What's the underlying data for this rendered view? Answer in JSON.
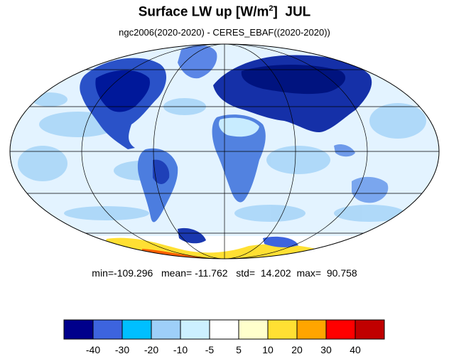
{
  "title": {
    "main": "Surface LW up [W/m",
    "sup": "2",
    "close": "]",
    "month": "JUL"
  },
  "subtitle": "ngc2006(2020-2020) - CERES_EBAF((2020-2020))",
  "stats": {
    "min_label": "min=",
    "min": "-109.296",
    "mean_label": "mean=",
    "mean": "-11.762",
    "std_label": "std=",
    "std": "14.202",
    "max_label": "max=",
    "max": "90.758"
  },
  "colorbar": {
    "colors": [
      "#00008b",
      "#3d64de",
      "#00bfff",
      "#9ecff9",
      "#ccf0ff",
      "#ffffff",
      "#ffffcc",
      "#ffe033",
      "#ffa500",
      "#ff0000",
      "#c00000"
    ],
    "ticks": [
      "-40",
      "-30",
      "-20",
      "-10",
      "-5",
      "5",
      "10",
      "20",
      "30",
      "40"
    ]
  },
  "map": {
    "projection": "mollweide",
    "ocean_color": "#e6f6ff",
    "coast_color": "#000000"
  }
}
